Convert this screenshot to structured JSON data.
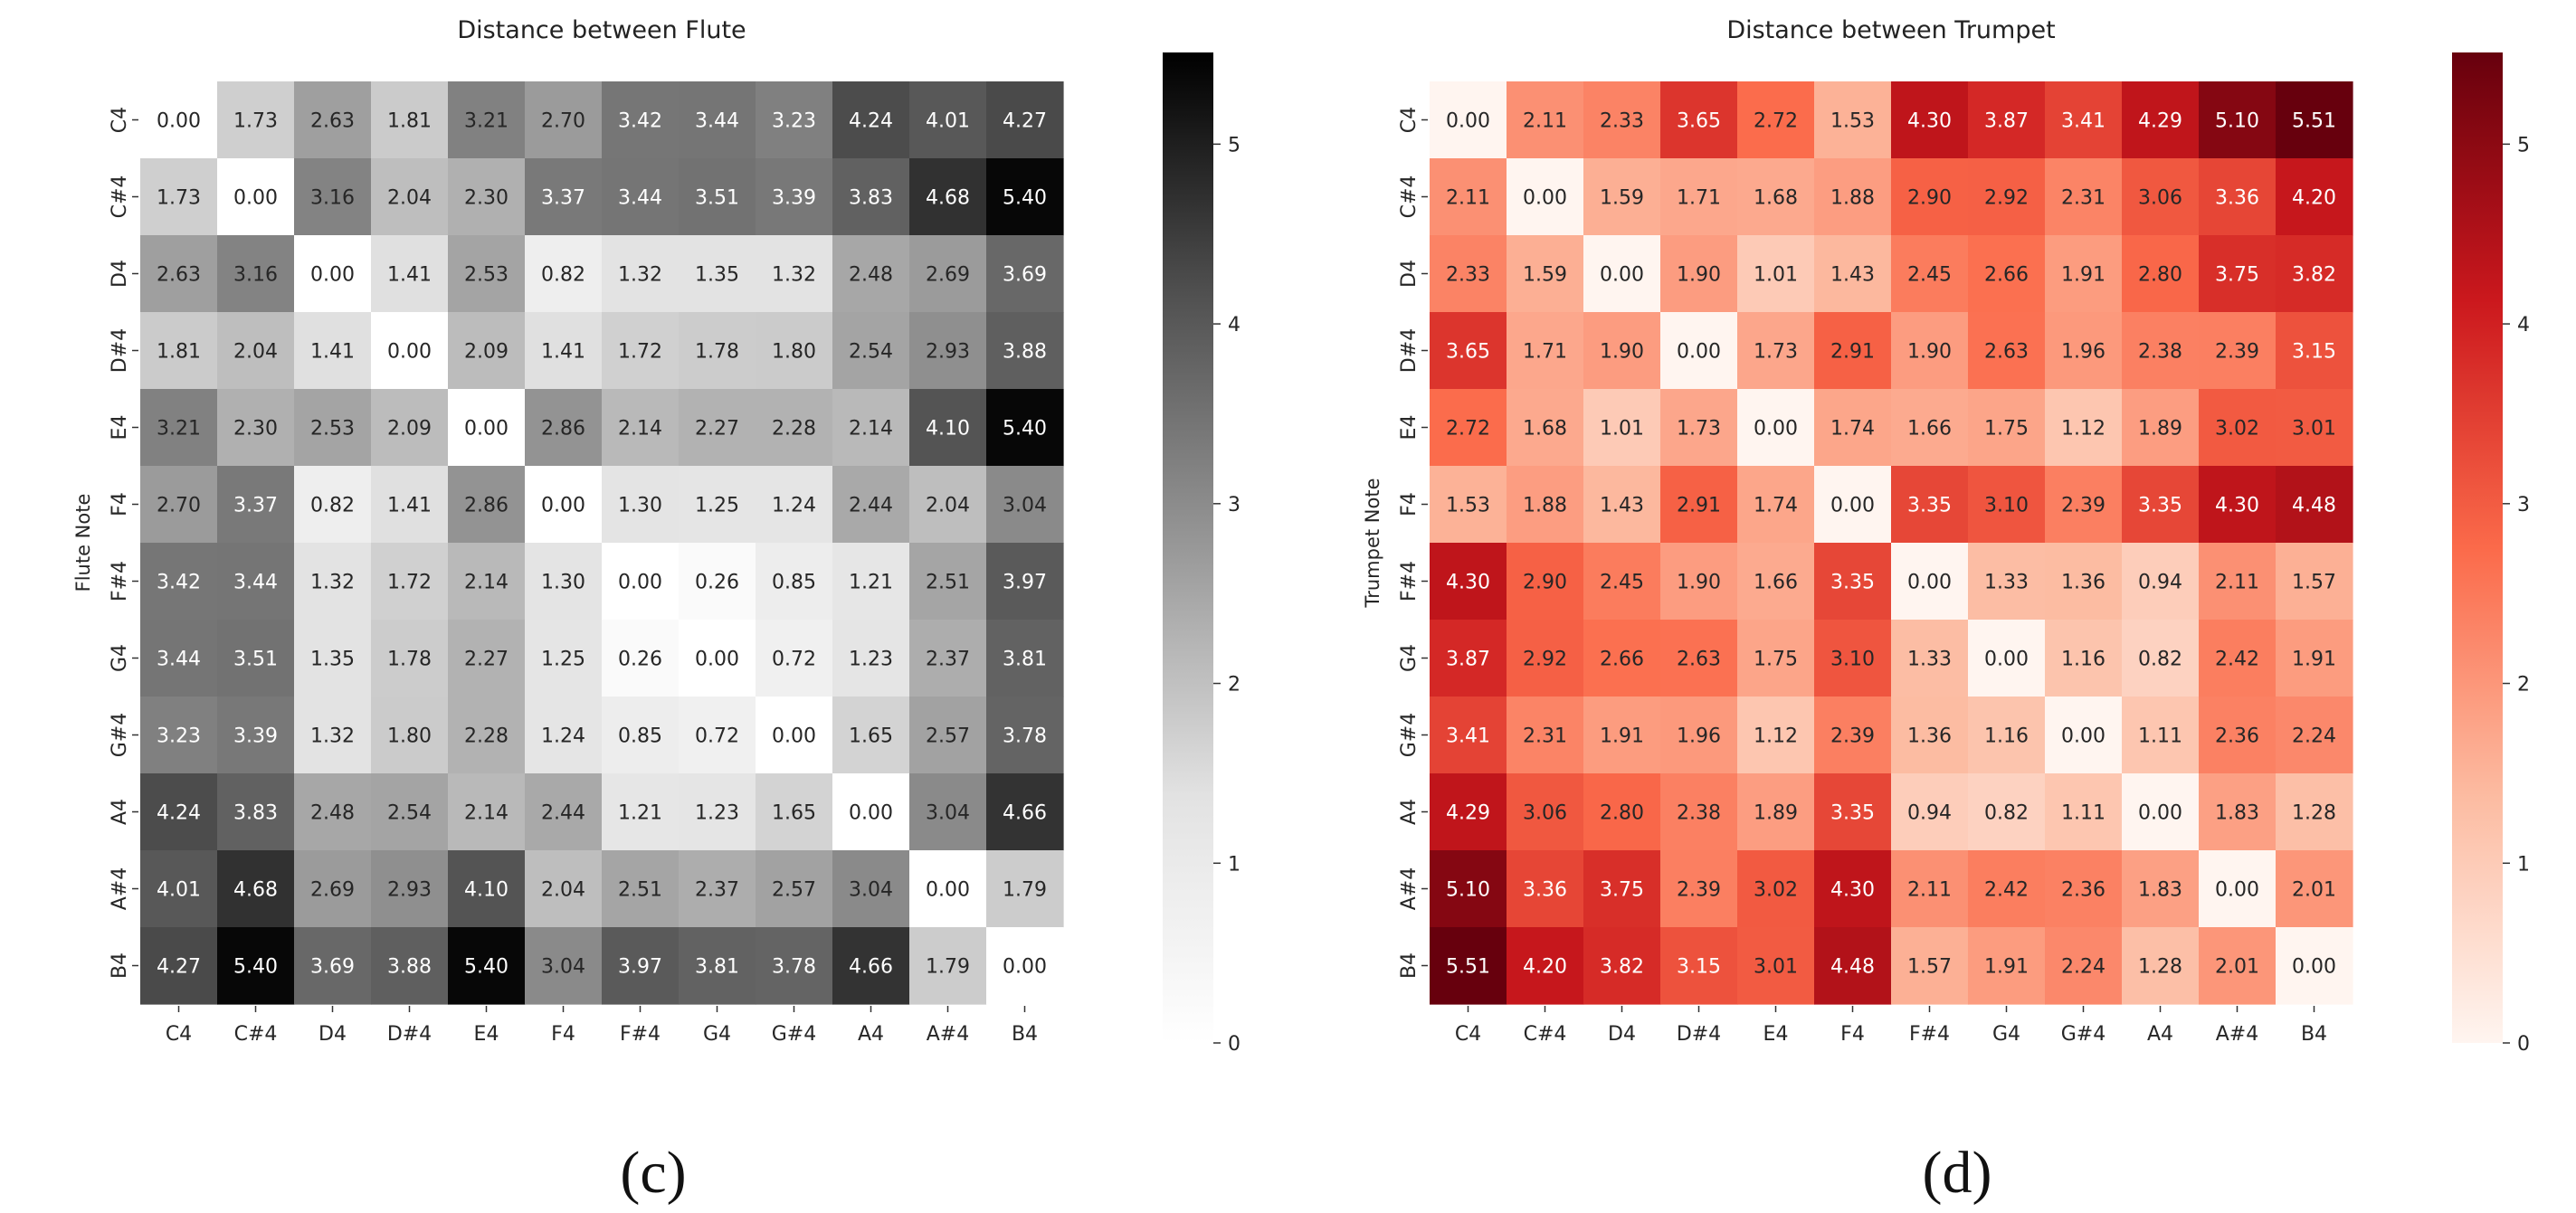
{
  "chart_data": [
    {
      "type": "heatmap",
      "title": "Distance between  Flute",
      "xlabel": "",
      "ylabel": "Flute Note",
      "panel_label": "(c)",
      "colormap": "greys",
      "vmin": 0,
      "vmax": 5.51,
      "colorbar_ticks": [
        0,
        1,
        2,
        3,
        4,
        5
      ],
      "x_labels": [
        "C4",
        "C#4",
        "D4",
        "D#4",
        "E4",
        "F4",
        "F#4",
        "G4",
        "G#4",
        "A4",
        "A#4",
        "B4"
      ],
      "y_labels": [
        "C4",
        "C#4",
        "D4",
        "D#4",
        "E4",
        "F4",
        "F#4",
        "G4",
        "G#4",
        "A4",
        "A#4",
        "B4"
      ],
      "values": [
        [
          0.0,
          1.73,
          2.63,
          1.81,
          3.21,
          2.7,
          3.42,
          3.44,
          3.23,
          4.24,
          4.01,
          4.27
        ],
        [
          1.73,
          0.0,
          3.16,
          2.04,
          2.3,
          3.37,
          3.44,
          3.51,
          3.39,
          3.83,
          4.68,
          5.4
        ],
        [
          2.63,
          3.16,
          0.0,
          1.41,
          2.53,
          0.82,
          1.32,
          1.35,
          1.32,
          2.48,
          2.69,
          3.69
        ],
        [
          1.81,
          2.04,
          1.41,
          0.0,
          2.09,
          1.41,
          1.72,
          1.78,
          1.8,
          2.54,
          2.93,
          3.88
        ],
        [
          3.21,
          2.3,
          2.53,
          2.09,
          0.0,
          2.86,
          2.14,
          2.27,
          2.28,
          2.14,
          4.1,
          5.4
        ],
        [
          2.7,
          3.37,
          0.82,
          1.41,
          2.86,
          0.0,
          1.3,
          1.25,
          1.24,
          2.44,
          2.04,
          3.04
        ],
        [
          3.42,
          3.44,
          1.32,
          1.72,
          2.14,
          1.3,
          0.0,
          0.26,
          0.85,
          1.21,
          2.51,
          3.97
        ],
        [
          3.44,
          3.51,
          1.35,
          1.78,
          2.27,
          1.25,
          0.26,
          0.0,
          0.72,
          1.23,
          2.37,
          3.81
        ],
        [
          3.23,
          3.39,
          1.32,
          1.8,
          2.28,
          1.24,
          0.85,
          0.72,
          0.0,
          1.65,
          2.57,
          3.78
        ],
        [
          4.24,
          3.83,
          2.48,
          2.54,
          2.14,
          2.44,
          1.21,
          1.23,
          1.65,
          0.0,
          3.04,
          4.66
        ],
        [
          4.01,
          4.68,
          2.69,
          2.93,
          4.1,
          2.04,
          2.51,
          2.37,
          2.57,
          3.04,
          0.0,
          1.79
        ],
        [
          4.27,
          5.4,
          3.69,
          3.88,
          5.4,
          3.04,
          3.97,
          3.81,
          3.78,
          4.66,
          1.79,
          0.0
        ]
      ]
    },
    {
      "type": "heatmap",
      "title": "Distance between  Trumpet",
      "xlabel": "",
      "ylabel": "Trumpet Note",
      "panel_label": "(d)",
      "colormap": "reds",
      "vmin": 0,
      "vmax": 5.51,
      "colorbar_ticks": [
        0,
        1,
        2,
        3,
        4,
        5
      ],
      "x_labels": [
        "C4",
        "C#4",
        "D4",
        "D#4",
        "E4",
        "F4",
        "F#4",
        "G4",
        "G#4",
        "A4",
        "A#4",
        "B4"
      ],
      "y_labels": [
        "C4",
        "C#4",
        "D4",
        "D#4",
        "E4",
        "F4",
        "F#4",
        "G4",
        "G#4",
        "A4",
        "A#4",
        "B4"
      ],
      "values": [
        [
          0.0,
          2.11,
          2.33,
          3.65,
          2.72,
          1.53,
          4.3,
          3.87,
          3.41,
          4.29,
          5.1,
          5.51
        ],
        [
          2.11,
          0.0,
          1.59,
          1.71,
          1.68,
          1.88,
          2.9,
          2.92,
          2.31,
          3.06,
          3.36,
          4.2
        ],
        [
          2.33,
          1.59,
          0.0,
          1.9,
          1.01,
          1.43,
          2.45,
          2.66,
          1.91,
          2.8,
          3.75,
          3.82
        ],
        [
          3.65,
          1.71,
          1.9,
          0.0,
          1.73,
          2.91,
          1.9,
          2.63,
          1.96,
          2.38,
          2.39,
          3.15
        ],
        [
          2.72,
          1.68,
          1.01,
          1.73,
          0.0,
          1.74,
          1.66,
          1.75,
          1.12,
          1.89,
          3.02,
          3.01
        ],
        [
          1.53,
          1.88,
          1.43,
          2.91,
          1.74,
          0.0,
          3.35,
          3.1,
          2.39,
          3.35,
          4.3,
          4.48
        ],
        [
          4.3,
          2.9,
          2.45,
          1.9,
          1.66,
          3.35,
          0.0,
          1.33,
          1.36,
          0.94,
          2.11,
          1.57
        ],
        [
          3.87,
          2.92,
          2.66,
          2.63,
          1.75,
          3.1,
          1.33,
          0.0,
          1.16,
          0.82,
          2.42,
          1.91
        ],
        [
          3.41,
          2.31,
          1.91,
          1.96,
          1.12,
          2.39,
          1.36,
          1.16,
          0.0,
          1.11,
          2.36,
          2.24
        ],
        [
          4.29,
          3.06,
          2.8,
          2.38,
          1.89,
          3.35,
          0.94,
          0.82,
          1.11,
          0.0,
          1.83,
          1.28
        ],
        [
          5.1,
          3.36,
          3.75,
          2.39,
          3.02,
          4.3,
          2.11,
          2.42,
          2.36,
          1.83,
          0.0,
          2.01
        ],
        [
          5.51,
          4.2,
          3.82,
          3.15,
          3.01,
          4.48,
          1.57,
          1.91,
          2.24,
          1.28,
          2.01,
          0.0
        ]
      ]
    }
  ]
}
